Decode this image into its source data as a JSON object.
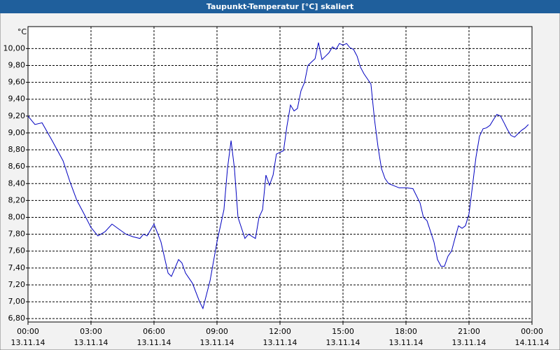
{
  "chart_data": {
    "type": "line",
    "title": "Taupunkt-Temperatur [°C] skaliert",
    "y_unit": "°C",
    "grid": true,
    "xlim": [
      0,
      24
    ],
    "ylim": [
      6.76,
      10.26
    ],
    "xticks": [
      {
        "value": 0,
        "label": "00:00",
        "date": "13.11.14"
      },
      {
        "value": 3,
        "label": "03:00",
        "date": "13.11.14"
      },
      {
        "value": 6,
        "label": "06:00",
        "date": "13.11.14"
      },
      {
        "value": 9,
        "label": "09:00",
        "date": "13.11.14"
      },
      {
        "value": 12,
        "label": "12:00",
        "date": "13.11.14"
      },
      {
        "value": 15,
        "label": "15:00",
        "date": "13.11.14"
      },
      {
        "value": 18,
        "label": "18:00",
        "date": "13.11.14"
      },
      {
        "value": 21,
        "label": "21:00",
        "date": "13.11.14"
      },
      {
        "value": 24,
        "label": "00:00",
        "date": "14.11.14"
      }
    ],
    "yticks": [
      {
        "value": 6.8,
        "label": "6,80"
      },
      {
        "value": 7.0,
        "label": "7,00"
      },
      {
        "value": 7.2,
        "label": "7,20"
      },
      {
        "value": 7.4,
        "label": "7,40"
      },
      {
        "value": 7.6,
        "label": "7,60"
      },
      {
        "value": 7.8,
        "label": "7,80"
      },
      {
        "value": 8.0,
        "label": "8,00"
      },
      {
        "value": 8.2,
        "label": "8,20"
      },
      {
        "value": 8.4,
        "label": "8,40"
      },
      {
        "value": 8.6,
        "label": "8,60"
      },
      {
        "value": 8.8,
        "label": "8,80"
      },
      {
        "value": 9.0,
        "label": "9,00"
      },
      {
        "value": 9.2,
        "label": "9,20"
      },
      {
        "value": 9.4,
        "label": "9,40"
      },
      {
        "value": 9.6,
        "label": "9,60"
      },
      {
        "value": 9.8,
        "label": "9,80"
      },
      {
        "value": 10.0,
        "label": "10,00"
      }
    ],
    "series": [
      {
        "color": "#0000c0",
        "x": [
          0,
          0.33,
          0.67,
          1.17,
          1.67,
          2,
          2.33,
          2.67,
          3,
          3.33,
          3.67,
          4,
          4.33,
          4.67,
          5,
          5.33,
          5.5,
          5.67,
          6,
          6.33,
          6.67,
          6.83,
          7.17,
          7.33,
          7.5,
          7.83,
          8.17,
          8.33,
          8.67,
          9,
          9.33,
          9.5,
          9.67,
          9.83,
          10,
          10.33,
          10.5,
          10.83,
          11,
          11.17,
          11.33,
          11.5,
          11.67,
          11.83,
          12.17,
          12.33,
          12.5,
          12.67,
          12.83,
          13,
          13.17,
          13.33,
          13.5,
          13.67,
          13.83,
          14,
          14.17,
          14.33,
          14.5,
          14.67,
          14.83,
          15,
          15.17,
          15.33,
          15.5,
          15.67,
          15.83,
          16,
          16.33,
          16.5,
          16.67,
          16.83,
          17,
          17.17,
          17.67,
          18,
          18.33,
          18.67,
          18.83,
          19,
          19.33,
          19.5,
          19.67,
          19.83,
          20,
          20.17,
          20.33,
          20.5,
          20.67,
          20.83,
          21,
          21.17,
          21.33,
          21.5,
          21.67,
          21.83,
          22,
          22.17,
          22.33,
          22.5,
          22.67,
          22.83,
          23,
          23.17,
          23.33,
          23.5,
          23.67,
          23.83
        ],
        "values": [
          9.2,
          9.1,
          9.12,
          8.9,
          8.67,
          8.42,
          8.2,
          8.04,
          7.88,
          7.78,
          7.83,
          7.92,
          7.86,
          7.8,
          7.77,
          7.75,
          7.8,
          7.78,
          7.92,
          7.71,
          7.34,
          7.3,
          7.5,
          7.46,
          7.34,
          7.22,
          7.0,
          6.92,
          7.25,
          7.71,
          8.09,
          8.58,
          8.91,
          8.58,
          8.0,
          7.75,
          7.8,
          7.75,
          8.0,
          8.09,
          8.5,
          8.38,
          8.5,
          8.75,
          8.79,
          9.08,
          9.33,
          9.26,
          9.29,
          9.5,
          9.6,
          9.8,
          9.84,
          9.88,
          10.07,
          9.87,
          9.91,
          9.95,
          10.02,
          9.99,
          10.06,
          10.04,
          10.06,
          10.01,
          9.99,
          9.91,
          9.78,
          9.7,
          9.58,
          9.16,
          8.83,
          8.58,
          8.46,
          8.4,
          8.35,
          8.35,
          8.34,
          8.17,
          8.0,
          7.96,
          7.71,
          7.5,
          7.42,
          7.42,
          7.54,
          7.6,
          7.75,
          7.9,
          7.87,
          7.9,
          8.04,
          8.38,
          8.71,
          8.96,
          9.05,
          9.06,
          9.09,
          9.16,
          9.22,
          9.2,
          9.12,
          9.04,
          8.97,
          8.95,
          8.99,
          9.03,
          9.06,
          9.1
        ]
      }
    ]
  }
}
